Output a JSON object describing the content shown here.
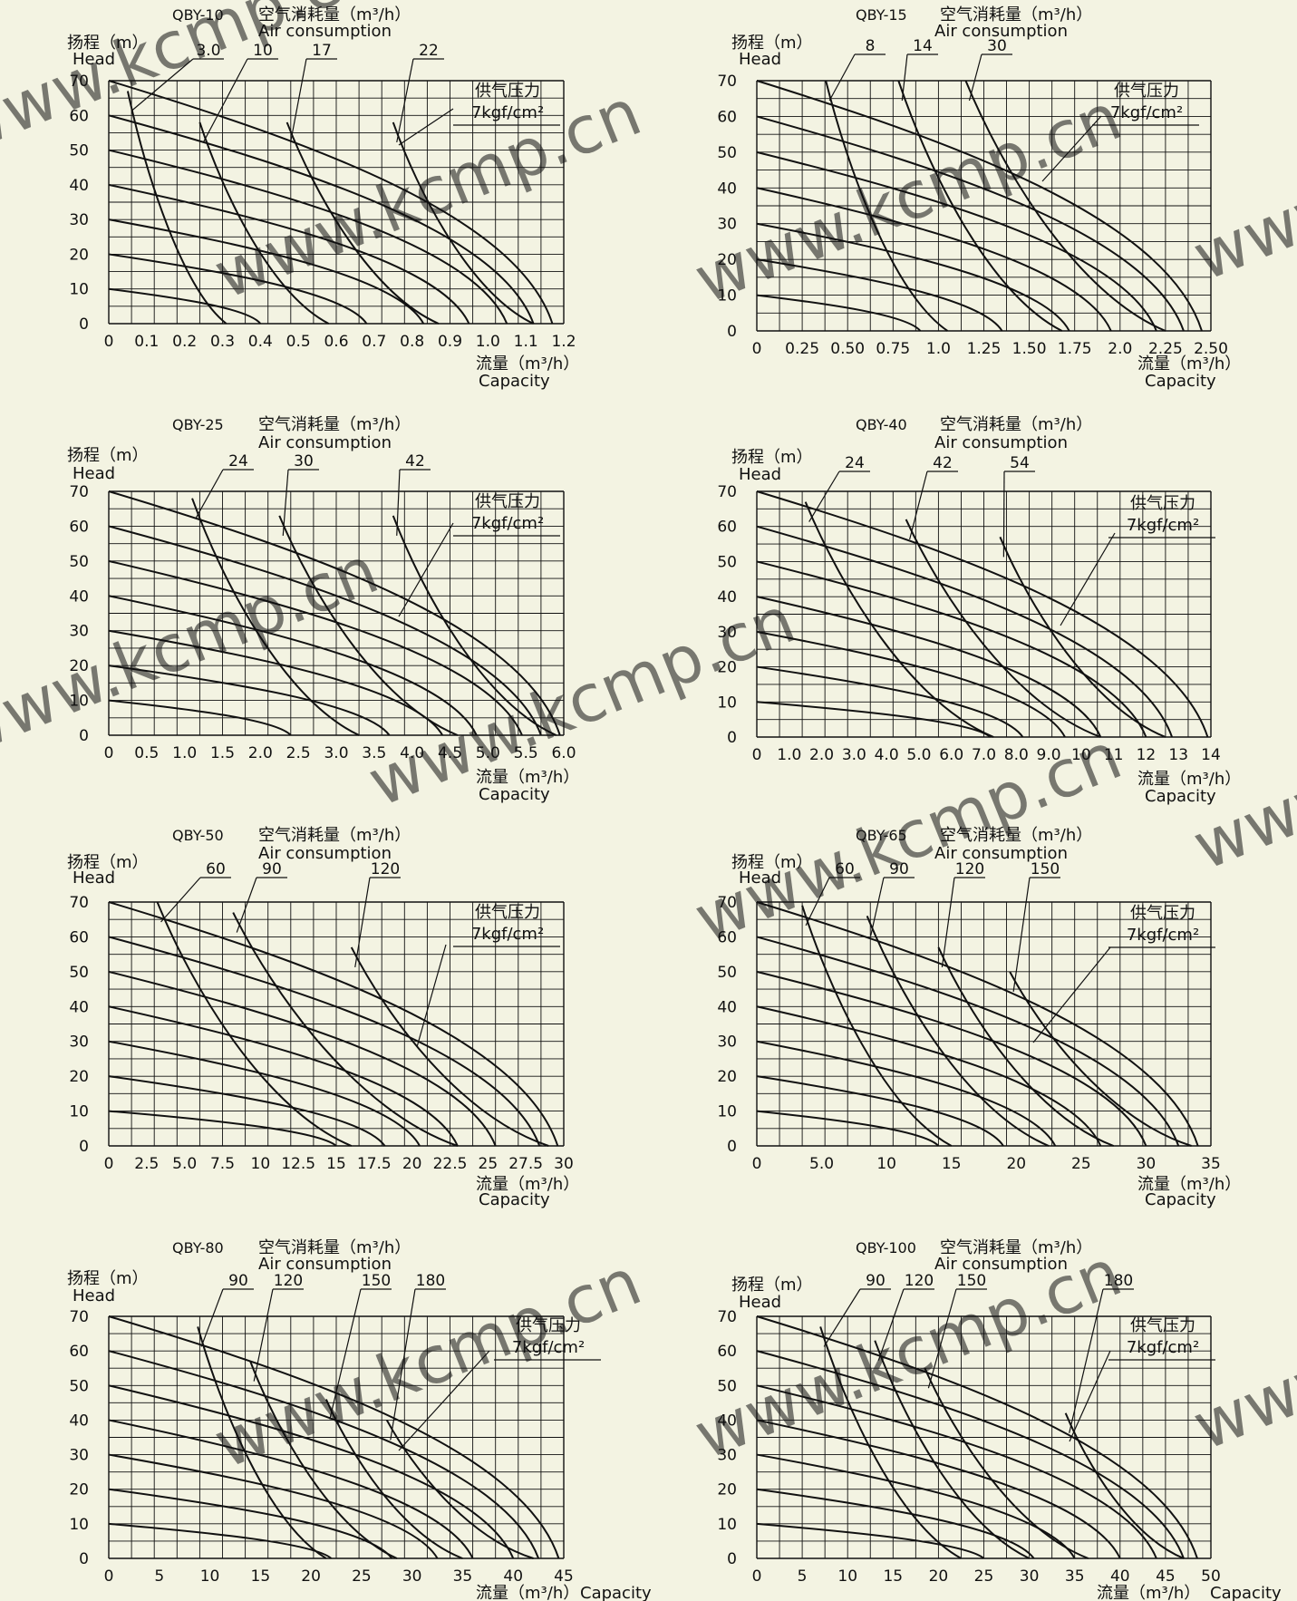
{
  "page": {
    "labels": {
      "air_cn": "空气消耗量（m³/h）",
      "air_en": "Air consumption",
      "head_cn": "扬程（m）",
      "head_en": "Head",
      "flow_cn": "流量（m³/h）",
      "flow_en": "Capacity",
      "pressure_cn": "供气压力",
      "pressure_val": "7kgf/cm²"
    },
    "watermark": "www.kcmp.cn",
    "colors": {
      "background": "#f3f3e2",
      "ink": "#111111",
      "watermark": "#c8c8c0"
    }
  },
  "chart_data": [
    {
      "type": "line",
      "title": "QBY-10",
      "xlim": [
        0,
        1.2
      ],
      "ylim": [
        0,
        70
      ],
      "x_ticks": [
        "0",
        "0.1",
        "0.2",
        "0.3",
        "0.4",
        "0.5",
        "0.6",
        "0.7",
        "0.8",
        "0.9",
        "1.0",
        "1.1",
        "1.2"
      ],
      "y_ticks": [
        "0",
        "10",
        "20",
        "30",
        "40",
        "50",
        "60",
        "70"
      ],
      "air_labels": [
        "3.0",
        "10",
        "17",
        "22"
      ],
      "pressure_curves": [
        {
          "start": 70,
          "end": 1.17
        },
        {
          "start": 60,
          "end": 1.12
        },
        {
          "start": 50,
          "end": 1.05
        },
        {
          "start": 40,
          "end": 0.95
        },
        {
          "start": 30,
          "end": 0.83
        },
        {
          "start": 20,
          "end": 0.68
        },
        {
          "start": 10,
          "end": 0.4
        }
      ],
      "air_curves": [
        {
          "name": "3.0",
          "top": [
            0.05,
            67
          ],
          "end": 0.31
        },
        {
          "name": "10",
          "top": [
            0.24,
            58
          ],
          "end": 0.58
        },
        {
          "name": "17",
          "top": [
            0.47,
            58
          ],
          "end": 0.87
        },
        {
          "name": "22",
          "top": [
            0.75,
            58
          ],
          "end": 1.12
        }
      ]
    },
    {
      "type": "line",
      "title": "QBY-15",
      "xlim": [
        0,
        2.5
      ],
      "ylim": [
        0,
        70
      ],
      "x_ticks": [
        "0",
        "0.25",
        "0.50",
        "0.75",
        "1.0",
        "1.25",
        "1.50",
        "1.75",
        "2.0",
        "2.25",
        "2.50"
      ],
      "y_ticks": [
        "0",
        "10",
        "20",
        "30",
        "40",
        "50",
        "60",
        "70"
      ],
      "air_labels": [
        "8",
        "14",
        "30"
      ],
      "pressure_curves": [
        {
          "start": 70,
          "end": 2.45
        },
        {
          "start": 60,
          "end": 2.35
        },
        {
          "start": 50,
          "end": 2.2
        },
        {
          "start": 40,
          "end": 1.95
        },
        {
          "start": 30,
          "end": 1.72
        },
        {
          "start": 20,
          "end": 1.35
        },
        {
          "start": 10,
          "end": 0.9
        }
      ],
      "air_curves": [
        {
          "name": "8",
          "top": [
            0.38,
            70
          ],
          "end": 1.05
        },
        {
          "name": "14",
          "top": [
            0.78,
            70
          ],
          "end": 1.68
        },
        {
          "name": "30",
          "top": [
            1.15,
            70
          ],
          "end": 2.25
        }
      ]
    },
    {
      "type": "line",
      "title": "QBY-25",
      "xlim": [
        0,
        6.0
      ],
      "ylim": [
        0,
        70
      ],
      "x_ticks": [
        "0",
        "0.5",
        "1.0",
        "1.5",
        "2.0",
        "2.5",
        "3.0",
        "3.5",
        "4.0",
        "4.5",
        "5.0",
        "5.5",
        "6.0"
      ],
      "y_ticks": [
        "0",
        "10",
        "20",
        "30",
        "40",
        "50",
        "60",
        "70"
      ],
      "air_labels": [
        "24",
        "30",
        "42"
      ],
      "pressure_curves": [
        {
          "start": 70,
          "end": 5.95
        },
        {
          "start": 60,
          "end": 5.7
        },
        {
          "start": 50,
          "end": 5.45
        },
        {
          "start": 40,
          "end": 4.85
        },
        {
          "start": 30,
          "end": 4.4
        },
        {
          "start": 20,
          "end": 3.7
        },
        {
          "start": 10,
          "end": 2.4
        }
      ],
      "air_curves": [
        {
          "name": "24",
          "top": [
            1.1,
            68
          ],
          "end": 3.3
        },
        {
          "name": "30",
          "top": [
            2.25,
            63
          ],
          "end": 4.6
        },
        {
          "name": "42",
          "top": [
            3.75,
            63
          ],
          "end": 5.9
        }
      ]
    },
    {
      "type": "line",
      "title": "QBY-40",
      "xlim": [
        0,
        14
      ],
      "ylim": [
        0,
        70
      ],
      "x_ticks": [
        "0",
        "1.0",
        "2.0",
        "3.0",
        "4.0",
        "5.0",
        "6.0",
        "7.0",
        "8.0",
        "9.0",
        "10",
        "11",
        "12",
        "13",
        "14"
      ],
      "y_ticks": [
        "0",
        "10",
        "20",
        "30",
        "40",
        "50",
        "60",
        "70"
      ],
      "air_labels": [
        "24",
        "42",
        "54"
      ],
      "pressure_curves": [
        {
          "start": 70,
          "end": 13.9
        },
        {
          "start": 60,
          "end": 12.8
        },
        {
          "start": 50,
          "end": 12.0
        },
        {
          "start": 40,
          "end": 10.6
        },
        {
          "start": 30,
          "end": 9.5
        },
        {
          "start": 20,
          "end": 8.2
        },
        {
          "start": 10,
          "end": 7.2
        }
      ],
      "air_curves": [
        {
          "name": "24",
          "top": [
            1.5,
            67
          ],
          "end": 7.3
        },
        {
          "name": "42",
          "top": [
            4.6,
            62
          ],
          "end": 10.6
        },
        {
          "name": "54",
          "top": [
            7.5,
            57
          ],
          "end": 12.6
        }
      ]
    },
    {
      "type": "line",
      "title": "QBY-50",
      "xlim": [
        0,
        30
      ],
      "ylim": [
        0,
        70
      ],
      "x_ticks": [
        "0",
        "2.5",
        "5.0",
        "7.5",
        "10",
        "12.5",
        "15",
        "17.5",
        "20",
        "22.5",
        "25",
        "27.5",
        "30"
      ],
      "y_ticks": [
        "0",
        "10",
        "20",
        "30",
        "40",
        "50",
        "60",
        "70"
      ],
      "air_labels": [
        "60",
        "90",
        "120"
      ],
      "pressure_curves": [
        {
          "start": 70,
          "end": 29.6
        },
        {
          "start": 60,
          "end": 28.4
        },
        {
          "start": 50,
          "end": 25.5
        },
        {
          "start": 40,
          "end": 23.0
        },
        {
          "start": 30,
          "end": 20.5
        },
        {
          "start": 20,
          "end": 18.2
        },
        {
          "start": 10,
          "end": 15.0
        }
      ],
      "air_curves": [
        {
          "name": "60",
          "top": [
            3.2,
            70
          ],
          "end": 16.0
        },
        {
          "name": "90",
          "top": [
            8.2,
            67
          ],
          "end": 23.0
        },
        {
          "name": "120",
          "top": [
            16.0,
            57
          ],
          "end": 29.0
        }
      ]
    },
    {
      "type": "line",
      "title": "QBY-65",
      "xlim": [
        0,
        35
      ],
      "ylim": [
        0,
        70
      ],
      "x_ticks": [
        "0",
        "5.0",
        "10",
        "15",
        "20",
        "25",
        "30",
        "35"
      ],
      "y_ticks": [
        "0",
        "10",
        "20",
        "30",
        "40",
        "50",
        "60",
        "70"
      ],
      "air_labels": [
        "60",
        "90",
        "120",
        "150"
      ],
      "pressure_curves": [
        {
          "start": 70,
          "end": 34.0
        },
        {
          "start": 60,
          "end": 32.5
        },
        {
          "start": 50,
          "end": 30.0
        },
        {
          "start": 40,
          "end": 26.5
        },
        {
          "start": 30,
          "end": 23.0
        },
        {
          "start": 20,
          "end": 19.0
        },
        {
          "start": 10,
          "end": 14.0
        }
      ],
      "air_curves": [
        {
          "name": "60",
          "top": [
            3.5,
            69
          ],
          "end": 15.0
        },
        {
          "name": "90",
          "top": [
            8.5,
            66
          ],
          "end": 22.5
        },
        {
          "name": "120",
          "top": [
            14.0,
            57
          ],
          "end": 27.5
        },
        {
          "name": "150",
          "top": [
            19.5,
            50
          ],
          "end": 33.5
        }
      ]
    },
    {
      "type": "line",
      "title": "QBY-80",
      "xlim": [
        0,
        45
      ],
      "ylim": [
        0,
        70
      ],
      "x_ticks": [
        "0",
        "5",
        "10",
        "15",
        "20",
        "25",
        "30",
        "35",
        "40",
        "45"
      ],
      "y_ticks": [
        "0",
        "10",
        "20",
        "30",
        "40",
        "50",
        "60",
        "70"
      ],
      "air_labels": [
        "90",
        "120",
        "150",
        "180"
      ],
      "pressure_curves": [
        {
          "start": 70,
          "end": 44.5
        },
        {
          "start": 60,
          "end": 42.5
        },
        {
          "start": 50,
          "end": 40.0
        },
        {
          "start": 40,
          "end": 36.0
        },
        {
          "start": 30,
          "end": 32.5
        },
        {
          "start": 20,
          "end": 28.0
        },
        {
          "start": 10,
          "end": 22.0
        }
      ],
      "air_curves": [
        {
          "name": "90",
          "top": [
            8.8,
            67
          ],
          "end": 21.5
        },
        {
          "name": "120",
          "top": [
            14.0,
            57
          ],
          "end": 28.5
        },
        {
          "name": "150",
          "top": [
            21.5,
            46
          ],
          "end": 35.0
        },
        {
          "name": "180",
          "top": [
            27.5,
            40
          ],
          "end": 42.0
        }
      ]
    },
    {
      "type": "line",
      "title": "QBY-100",
      "xlim": [
        0,
        50
      ],
      "ylim": [
        0,
        70
      ],
      "x_ticks": [
        "0",
        "5",
        "10",
        "15",
        "20",
        "25",
        "30",
        "35",
        "40",
        "45",
        "50"
      ],
      "y_ticks": [
        "0",
        "10",
        "20",
        "30",
        "40",
        "50",
        "60",
        "70"
      ],
      "air_labels": [
        "90",
        "120",
        "150",
        "180"
      ],
      "pressure_curves": [
        {
          "start": 70,
          "end": 48.5
        },
        {
          "start": 60,
          "end": 47.0
        },
        {
          "start": 50,
          "end": 44.0
        },
        {
          "start": 40,
          "end": 40.0
        },
        {
          "start": 30,
          "end": 35.0
        },
        {
          "start": 20,
          "end": 30.5
        },
        {
          "start": 10,
          "end": 25.0
        }
      ],
      "air_curves": [
        {
          "name": "90",
          "top": [
            7.0,
            67
          ],
          "end": 22.5
        },
        {
          "name": "120",
          "top": [
            13.0,
            63
          ],
          "end": 30.0
        },
        {
          "name": "150",
          "top": [
            18.5,
            55
          ],
          "end": 36.5
        },
        {
          "name": "180",
          "top": [
            34.0,
            42
          ],
          "end": 47.0
        }
      ]
    }
  ]
}
